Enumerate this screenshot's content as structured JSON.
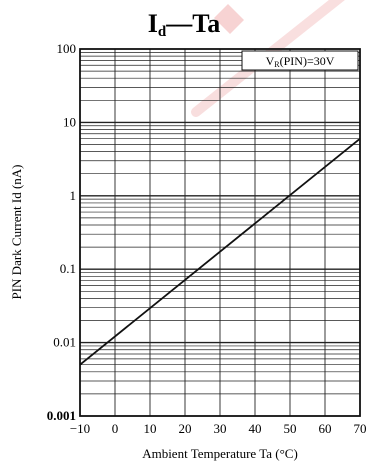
{
  "chart_data": {
    "type": "line",
    "title": "Id-Ta",
    "title_parts": {
      "main": "I",
      "sub": "d",
      "rest": "—Ta"
    },
    "xlabel": "Ambient Temperature Ta (°C)",
    "ylabel": "PIN Dark Current Id (nA)",
    "annotation": {
      "prefix": "V",
      "sub": "R",
      "rest": "(PIN)=30V"
    },
    "xlim": [
      -10,
      70
    ],
    "ylim": [
      0.001,
      100
    ],
    "y_scale": "log",
    "grid": true,
    "x_ticks": [
      -10,
      0,
      10,
      20,
      30,
      40,
      50,
      60,
      70
    ],
    "x_tick_labels": [
      "−10",
      "0",
      "10",
      "20",
      "30",
      "40",
      "50",
      "60",
      "70"
    ],
    "y_ticks": [
      0.001,
      0.01,
      0.1,
      1,
      10,
      100
    ],
    "y_tick_labels": [
      "0.001",
      "0.01",
      "0.1",
      "1",
      "10",
      "100"
    ],
    "series": [
      {
        "x": [
          -10,
          70
        ],
        "y": [
          0.005,
          6.0
        ]
      }
    ],
    "colors": {
      "line": "#111111",
      "grid": "#222222",
      "watermark": "#f2b8b8"
    }
  }
}
